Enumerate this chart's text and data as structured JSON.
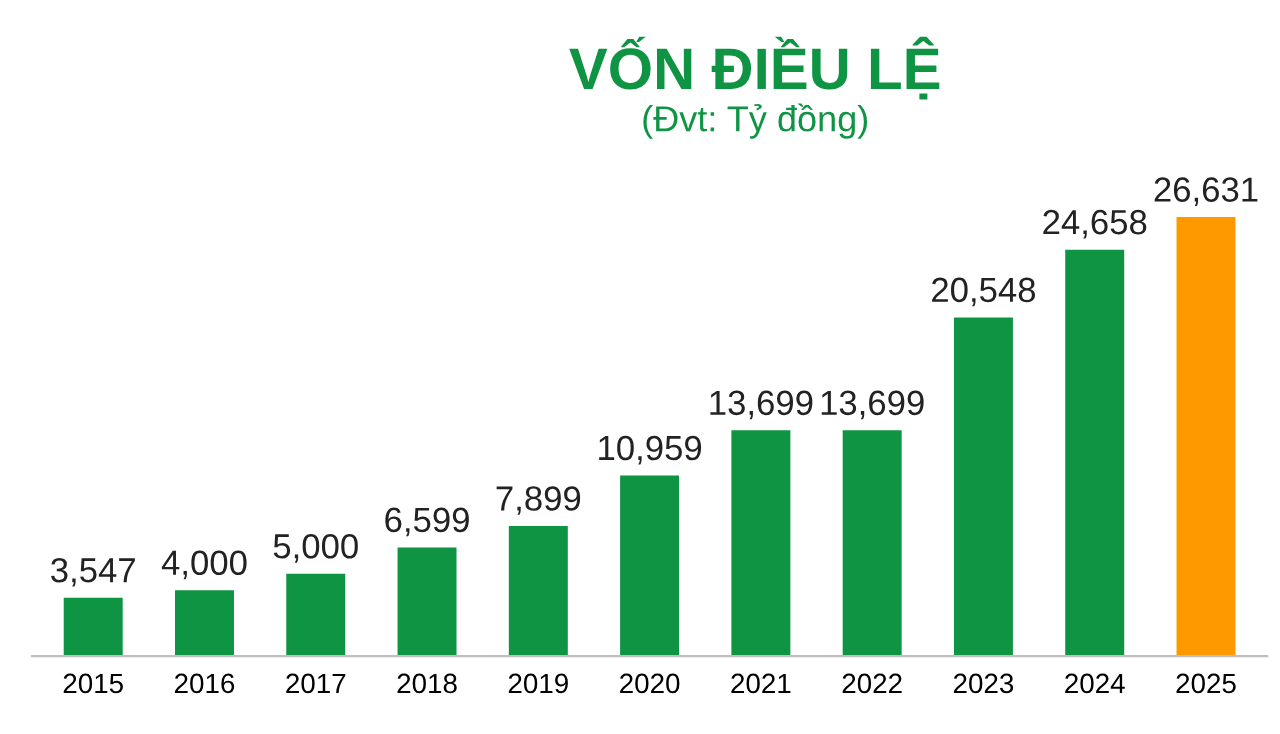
{
  "chart_data": {
    "type": "bar",
    "title": "VỐN ĐIỀU LỆ",
    "subtitle": "(Đvt: Tỷ đồng)",
    "categories": [
      "2015",
      "2016",
      "2017",
      "2018",
      "2019",
      "2020",
      "2021",
      "2022",
      "2023",
      "2024",
      "2025"
    ],
    "values": [
      3547,
      4000,
      5000,
      6599,
      7899,
      10959,
      13699,
      13699,
      20548,
      24658,
      26631
    ],
    "colors": [
      "#0f9444",
      "#0f9444",
      "#0f9444",
      "#0f9444",
      "#0f9444",
      "#0f9444",
      "#0f9444",
      "#0f9444",
      "#0f9444",
      "#0f9444",
      "#ff9900"
    ],
    "value_labels": [
      "3,547",
      "4,000",
      "5,000",
      "6,599",
      "7,899",
      "10,959",
      "13,699",
      "13,699",
      "20,548",
      "24,658",
      "26,631"
    ],
    "grid": false,
    "legend": false
  }
}
